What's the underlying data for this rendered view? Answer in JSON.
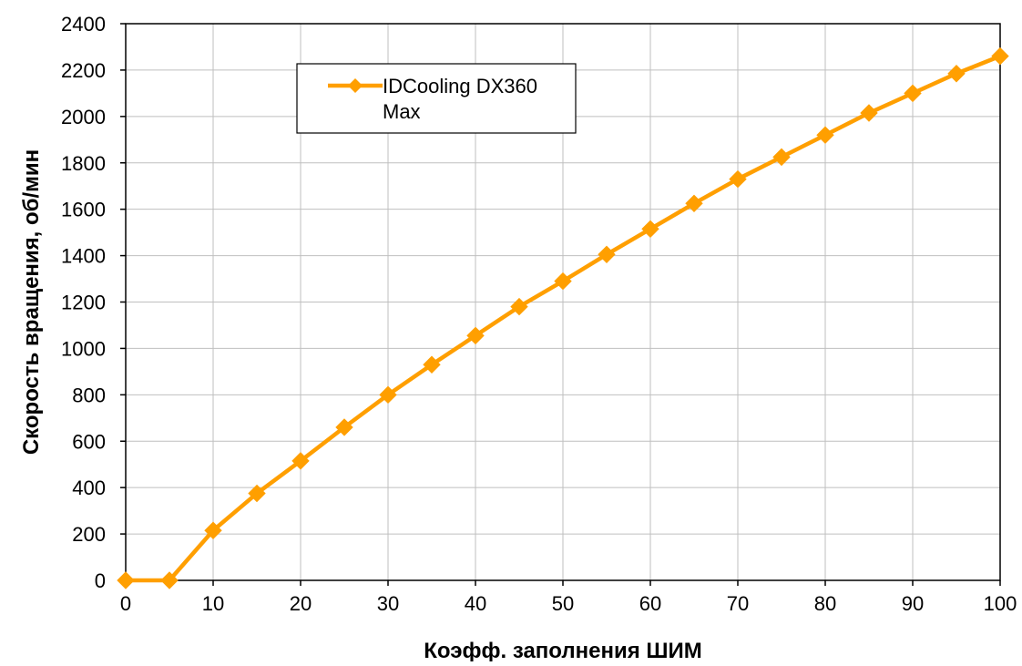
{
  "chart_data": {
    "type": "line",
    "title": "",
    "xlabel": "Коэфф. заполнения ШИМ",
    "ylabel": "Скорость вращения, об/мин",
    "xlim": [
      0,
      100
    ],
    "ylim": [
      0,
      2400
    ],
    "x_ticks": [
      0,
      10,
      20,
      30,
      40,
      50,
      60,
      70,
      80,
      90,
      100
    ],
    "y_ticks": [
      0,
      200,
      400,
      600,
      800,
      1000,
      1200,
      1400,
      1600,
      1800,
      2000,
      2200,
      2400
    ],
    "grid": true,
    "legend_position": "top-left",
    "series": [
      {
        "name": "IDCooling DX360 Max",
        "legend_lines": [
          "IDCooling DX360",
          "Max"
        ],
        "color": "#FF9F00",
        "marker": "diamond",
        "x": [
          0,
          5,
          10,
          15,
          20,
          25,
          30,
          35,
          40,
          45,
          50,
          55,
          60,
          65,
          70,
          75,
          80,
          85,
          90,
          95,
          100
        ],
        "y": [
          0,
          0,
          215,
          375,
          515,
          660,
          800,
          930,
          1055,
          1180,
          1290,
          1405,
          1515,
          1625,
          1730,
          1825,
          1920,
          2015,
          2100,
          2185,
          2260
        ]
      }
    ]
  }
}
